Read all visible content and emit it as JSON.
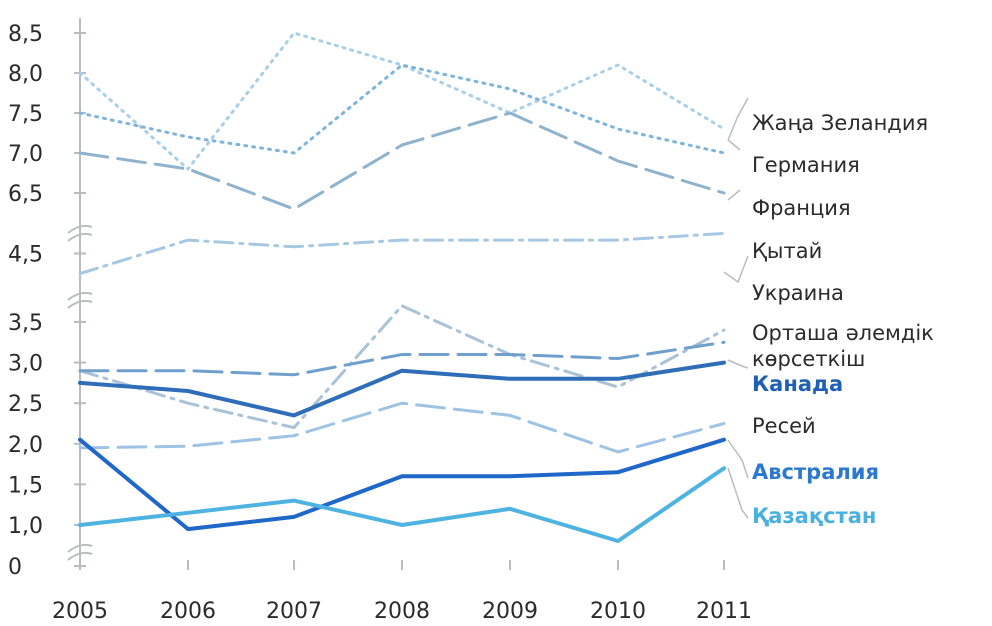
{
  "chart_data": {
    "type": "line",
    "x": [
      "2005",
      "2006",
      "2007",
      "2008",
      "2009",
      "2010",
      "2011"
    ],
    "y_tick_labels": [
      "0",
      "1,0",
      "1,5",
      "2,0",
      "2,5",
      "3,0",
      "3,5",
      "4,5",
      "6,5",
      "7,0",
      "7,5",
      "8,0",
      "8,5"
    ],
    "axis_breaks": [
      "between 0 and 1,0",
      "between 3,5 and 4,5",
      "between 4,5 and 6,5"
    ],
    "grid": false,
    "legend_placement": "right",
    "series": [
      {
        "name": "Жаңа Зеландия",
        "values": [
          8.0,
          6.8,
          8.5,
          8.1,
          7.5,
          8.1,
          7.3
        ],
        "color": "#a9cfe8",
        "dash": "dotted"
      },
      {
        "name": "Германия",
        "values": [
          7.5,
          7.2,
          7.0,
          8.1,
          7.8,
          7.3,
          7.0
        ],
        "color": "#7fb4dc",
        "dash": "dotted"
      },
      {
        "name": "Франция",
        "values": [
          7.0,
          6.8,
          6.3,
          7.1,
          7.5,
          6.9,
          6.5
        ],
        "color": "#8fb2cd",
        "dash": "long-dash"
      },
      {
        "name": "Қытай",
        "values": [
          4.2,
          4.7,
          4.6,
          4.7,
          4.7,
          4.7,
          4.8
        ],
        "color": "#a6c8e2",
        "dash": "dash-dot"
      },
      {
        "name": "Украина",
        "values": [
          2.9,
          2.5,
          2.2,
          3.7,
          3.1,
          2.7,
          3.4
        ],
        "color": "#a9c2d8",
        "dash": "dash-dot"
      },
      {
        "name": "Орташа әлемдік көрсеткіш",
        "values": [
          2.9,
          2.9,
          2.85,
          3.1,
          3.1,
          3.05,
          3.25
        ],
        "color": "#6f9fcc",
        "dash": "long-dash"
      },
      {
        "name": "Канада",
        "values": [
          2.75,
          2.65,
          2.35,
          2.9,
          2.8,
          2.8,
          3.0
        ],
        "color": "#2f6db8",
        "dash": "solid"
      },
      {
        "name": "Ресей",
        "values": [
          1.95,
          1.97,
          2.1,
          2.5,
          2.35,
          1.9,
          2.25
        ],
        "color": "#9ec3e4",
        "dash": "long-dash"
      },
      {
        "name": "Австралия",
        "values": [
          2.05,
          0.95,
          1.1,
          1.6,
          1.6,
          1.65,
          2.05
        ],
        "color": "#1f68c9",
        "dash": "solid"
      },
      {
        "name": "Қазақстан",
        "values": [
          1.0,
          1.15,
          1.3,
          1.0,
          1.2,
          0.8,
          1.7
        ],
        "color": "#4fb3e2",
        "dash": "solid"
      }
    ],
    "legend_order": [
      "Жаңа Зеландия",
      "Германия",
      "Франция",
      "Қытай",
      "Украина",
      "Орташа әлемдік көрсеткіш",
      "Канада",
      "Ресей",
      "Австралия",
      "Қазақстан"
    ],
    "legend_label_lines": [
      [
        "Жаңа Зеландия"
      ],
      [
        "Германия"
      ],
      [
        "Франция"
      ],
      [
        "Қытай"
      ],
      [
        "Украина"
      ],
      [
        "Орташа әлемдік",
        "көрсеткіш"
      ],
      [
        "Канада"
      ],
      [
        "Ресей"
      ],
      [
        "Австралия"
      ],
      [
        "Қазақстан"
      ]
    ],
    "legend_bold": [
      "Канада",
      "Австралия",
      "Қазақстан"
    ],
    "legend_colored": {
      "Канада": "#1f5fb4",
      "Австралия": "#2d79cf",
      "Қазақстан": "#49b0e0"
    }
  }
}
